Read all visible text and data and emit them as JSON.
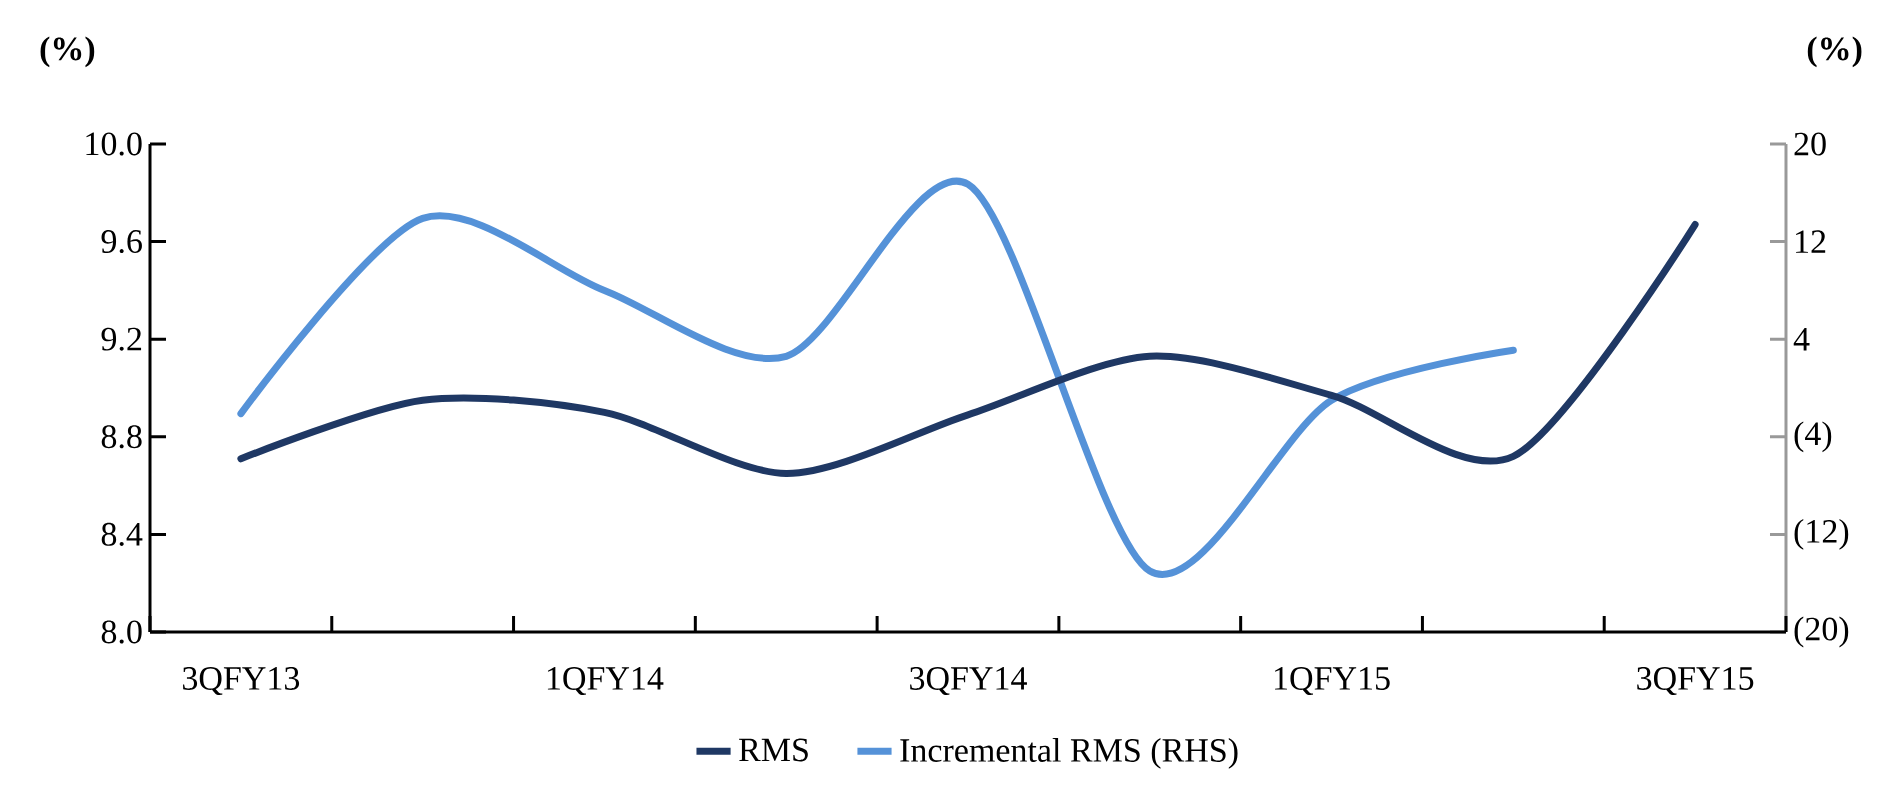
{
  "chart_data": {
    "type": "line",
    "categories": [
      "3QFY13",
      null,
      "1QFY14",
      null,
      "3QFY14",
      null,
      "1QFY15",
      null,
      "3QFY15"
    ],
    "series": [
      {
        "name": "RMS",
        "color": "#1f3864",
        "values": [
          8.71,
          8.95,
          8.9,
          8.65,
          8.89,
          9.13,
          8.97,
          8.72,
          9.67
        ]
      },
      {
        "name": "Incremental RMS (RHS)",
        "color": "#5592d8",
        "axis": "y2",
        "values": [
          -2.1,
          13.9,
          8.0,
          2.6,
          16.7,
          -15.0,
          -1.0,
          3.1,
          null
        ]
      }
    ],
    "ylabel": "(%)",
    "y2label": "(%)",
    "ylim": [
      8.0,
      10.0
    ],
    "yticks": [
      {
        "value": 8,
        "label": "8.0"
      },
      8.4,
      8.8,
      9.2,
      9.6,
      {
        "value": 10,
        "label": "10.0"
      }
    ],
    "y2lim": [
      -20,
      20
    ],
    "y2ticks": [
      {
        "value": -20,
        "label": "(20)"
      },
      {
        "value": -12,
        "label": "(12)"
      },
      {
        "value": -4,
        "label": "(4)"
      },
      4,
      12,
      20
    ],
    "grid": false,
    "legend": "bottom"
  }
}
